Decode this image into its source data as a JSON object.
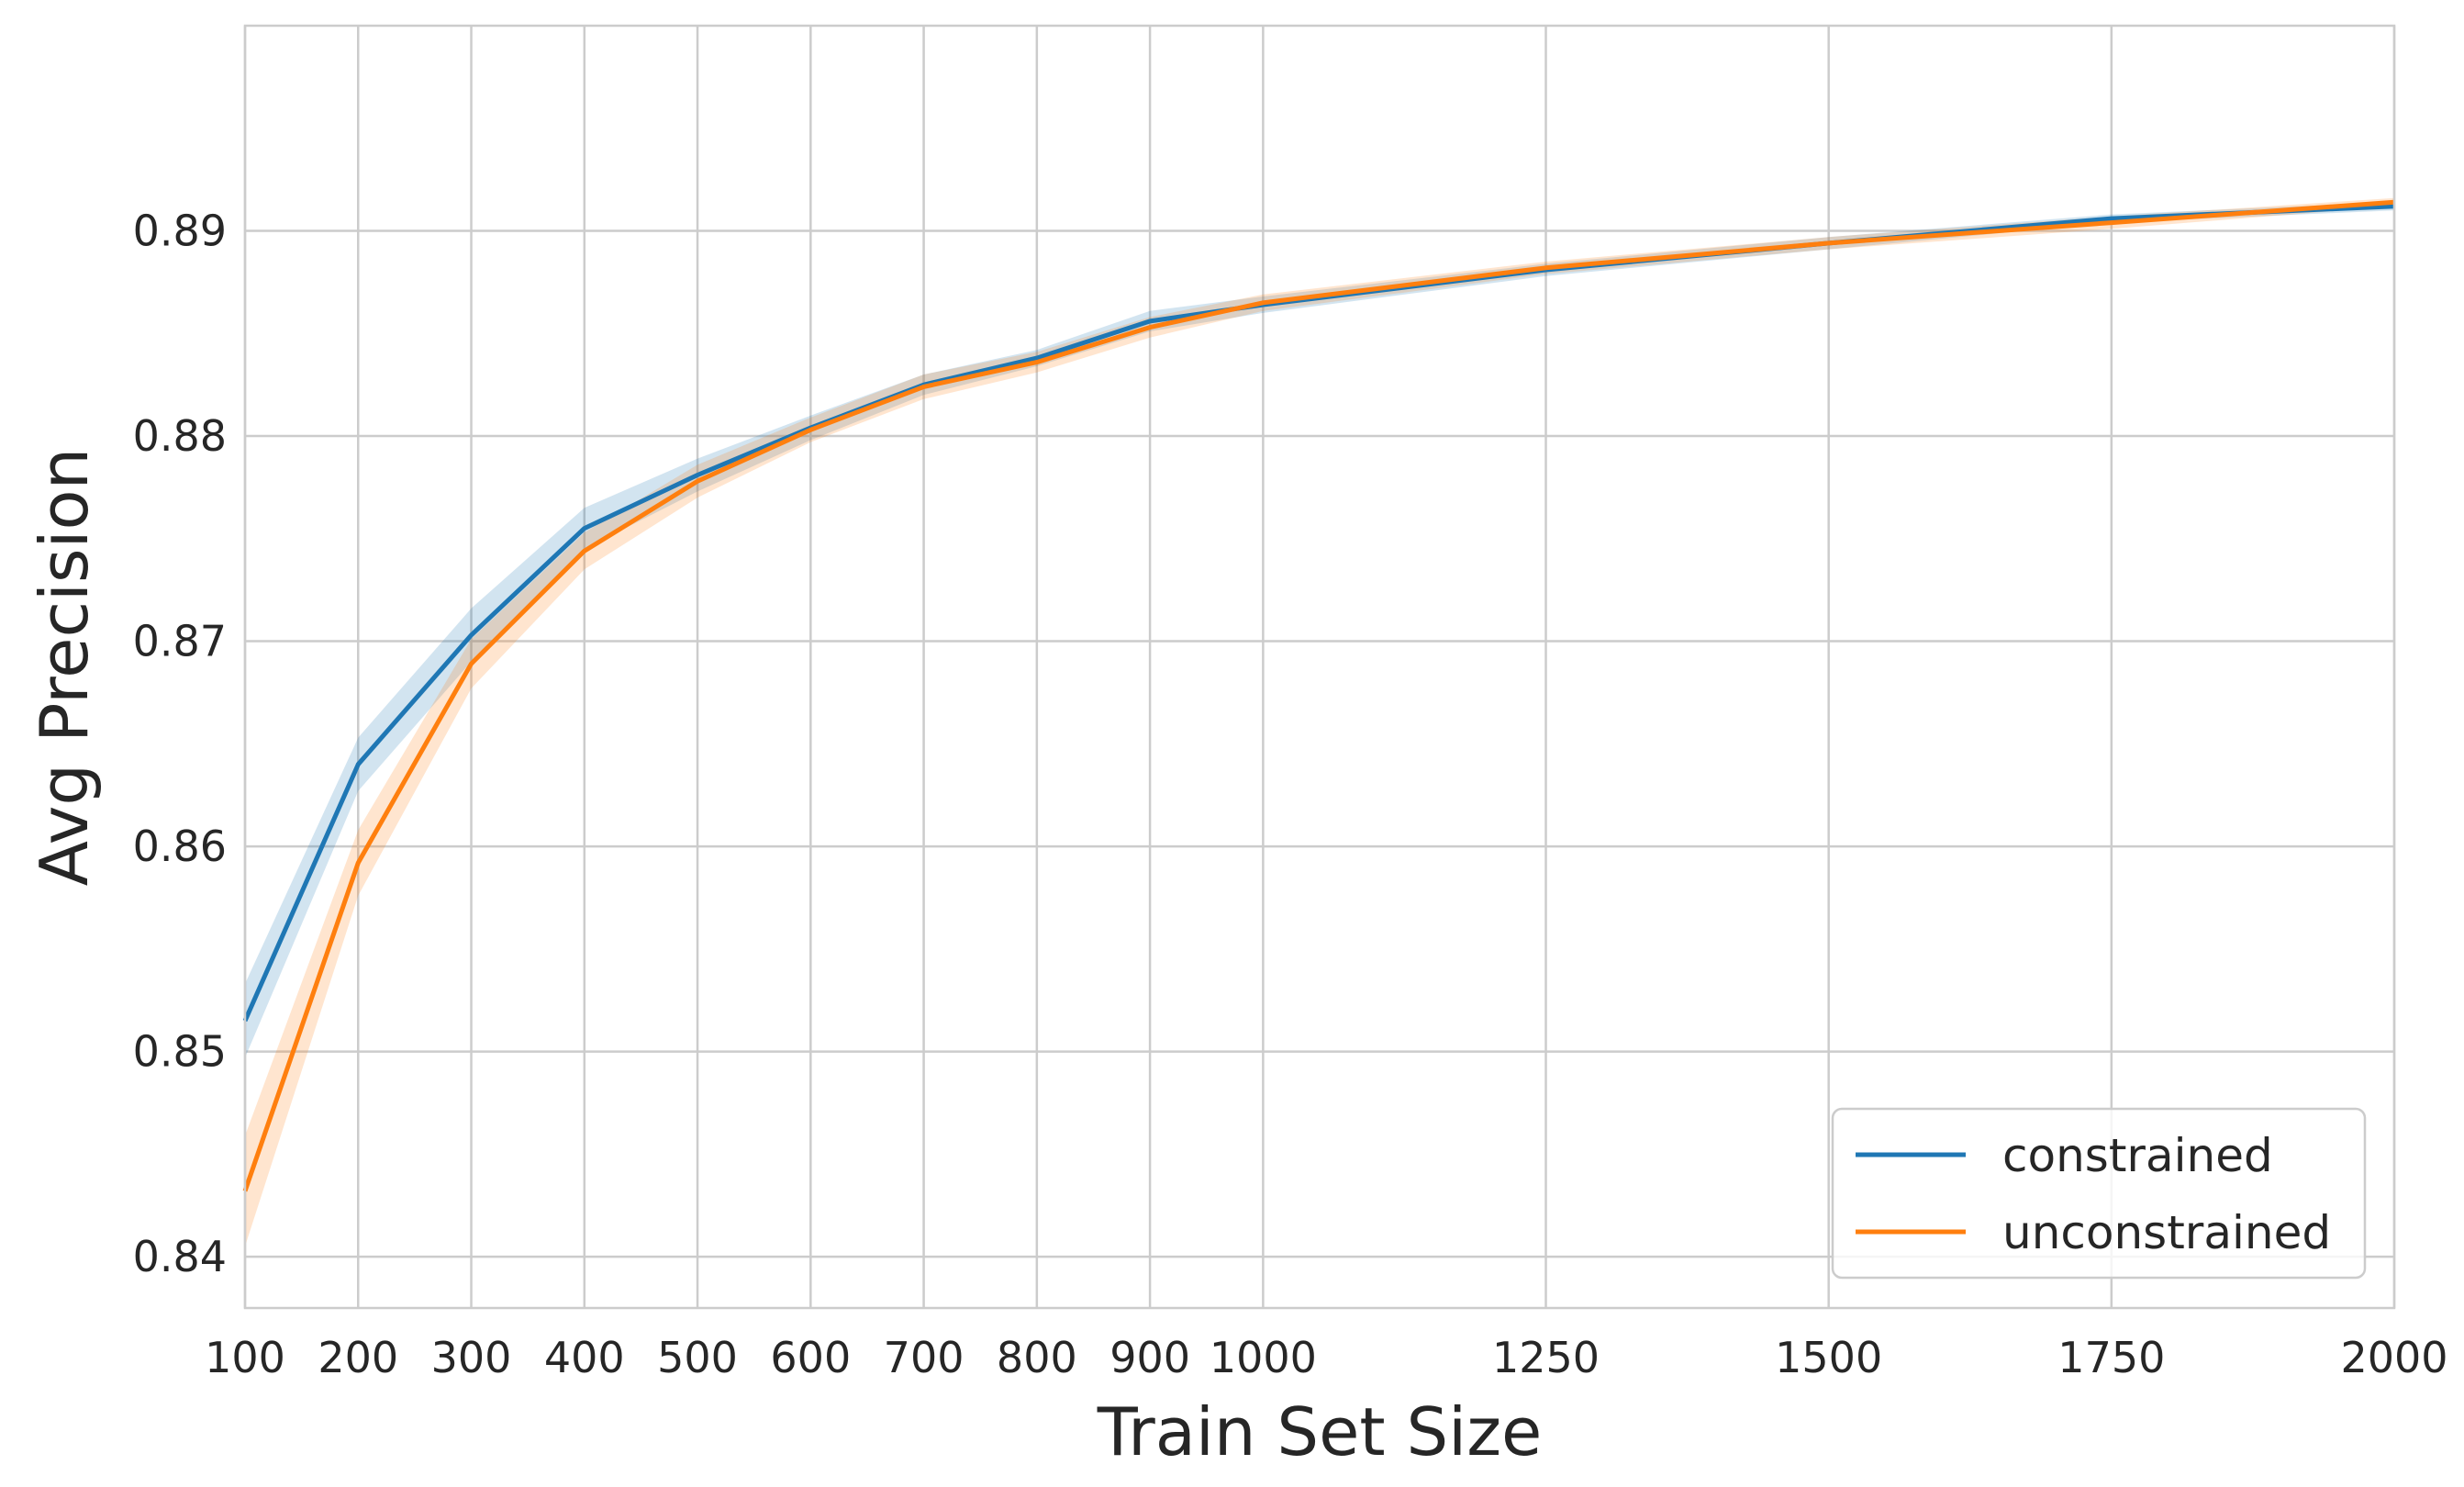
{
  "chart_data": {
    "type": "line",
    "title": "",
    "xlabel": "Train Set Size",
    "ylabel": "Avg Precision",
    "x": [
      100,
      200,
      300,
      400,
      500,
      600,
      700,
      800,
      900,
      1000,
      1250,
      1500,
      1750,
      2000
    ],
    "x_tick_labels": [
      "100",
      "200",
      "300",
      "400",
      "500",
      "600",
      "700",
      "800",
      "900",
      "1000",
      "1250",
      "1500",
      "1750",
      "2000"
    ],
    "y_tick_labels": [
      "0.84",
      "0.85",
      "0.86",
      "0.87",
      "0.88",
      "0.89"
    ],
    "y_ticks": [
      0.84,
      0.85,
      0.86,
      0.87,
      0.88,
      0.89
    ],
    "xlim": [
      100,
      2000
    ],
    "ylim": [
      0.8375,
      0.9
    ],
    "grid": true,
    "legend_position": "bottom-right",
    "series": [
      {
        "name": "constrained",
        "color": "#1f77b4",
        "values": [
          0.8515,
          0.864,
          0.8703,
          0.8755,
          0.8781,
          0.8804,
          0.8825,
          0.8838,
          0.8856,
          0.8864,
          0.8881,
          0.8894,
          0.8906,
          0.8912
        ],
        "ci_lower": [
          0.8497,
          0.8627,
          0.869,
          0.8745,
          0.8773,
          0.8798,
          0.882,
          0.8834,
          0.8851,
          0.886,
          0.8878,
          0.8891,
          0.8904,
          0.891
        ],
        "ci_upper": [
          0.8533,
          0.8653,
          0.8716,
          0.8765,
          0.8789,
          0.881,
          0.883,
          0.8842,
          0.8861,
          0.8868,
          0.8884,
          0.8897,
          0.8908,
          0.8914
        ]
      },
      {
        "name": "unconstrained",
        "color": "#ff7f0e",
        "values": [
          0.8432,
          0.8592,
          0.8689,
          0.8744,
          0.8778,
          0.8803,
          0.8824,
          0.8836,
          0.8853,
          0.8865,
          0.8882,
          0.8894,
          0.8904,
          0.8914
        ],
        "ci_lower": [
          0.8405,
          0.8576,
          0.8677,
          0.8735,
          0.877,
          0.8797,
          0.8818,
          0.8831,
          0.8848,
          0.8861,
          0.8879,
          0.8891,
          0.8901,
          0.8912
        ],
        "ci_upper": [
          0.8459,
          0.8608,
          0.8701,
          0.8753,
          0.8786,
          0.8809,
          0.883,
          0.8841,
          0.8858,
          0.8869,
          0.8885,
          0.8897,
          0.8907,
          0.8916
        ]
      }
    ]
  }
}
